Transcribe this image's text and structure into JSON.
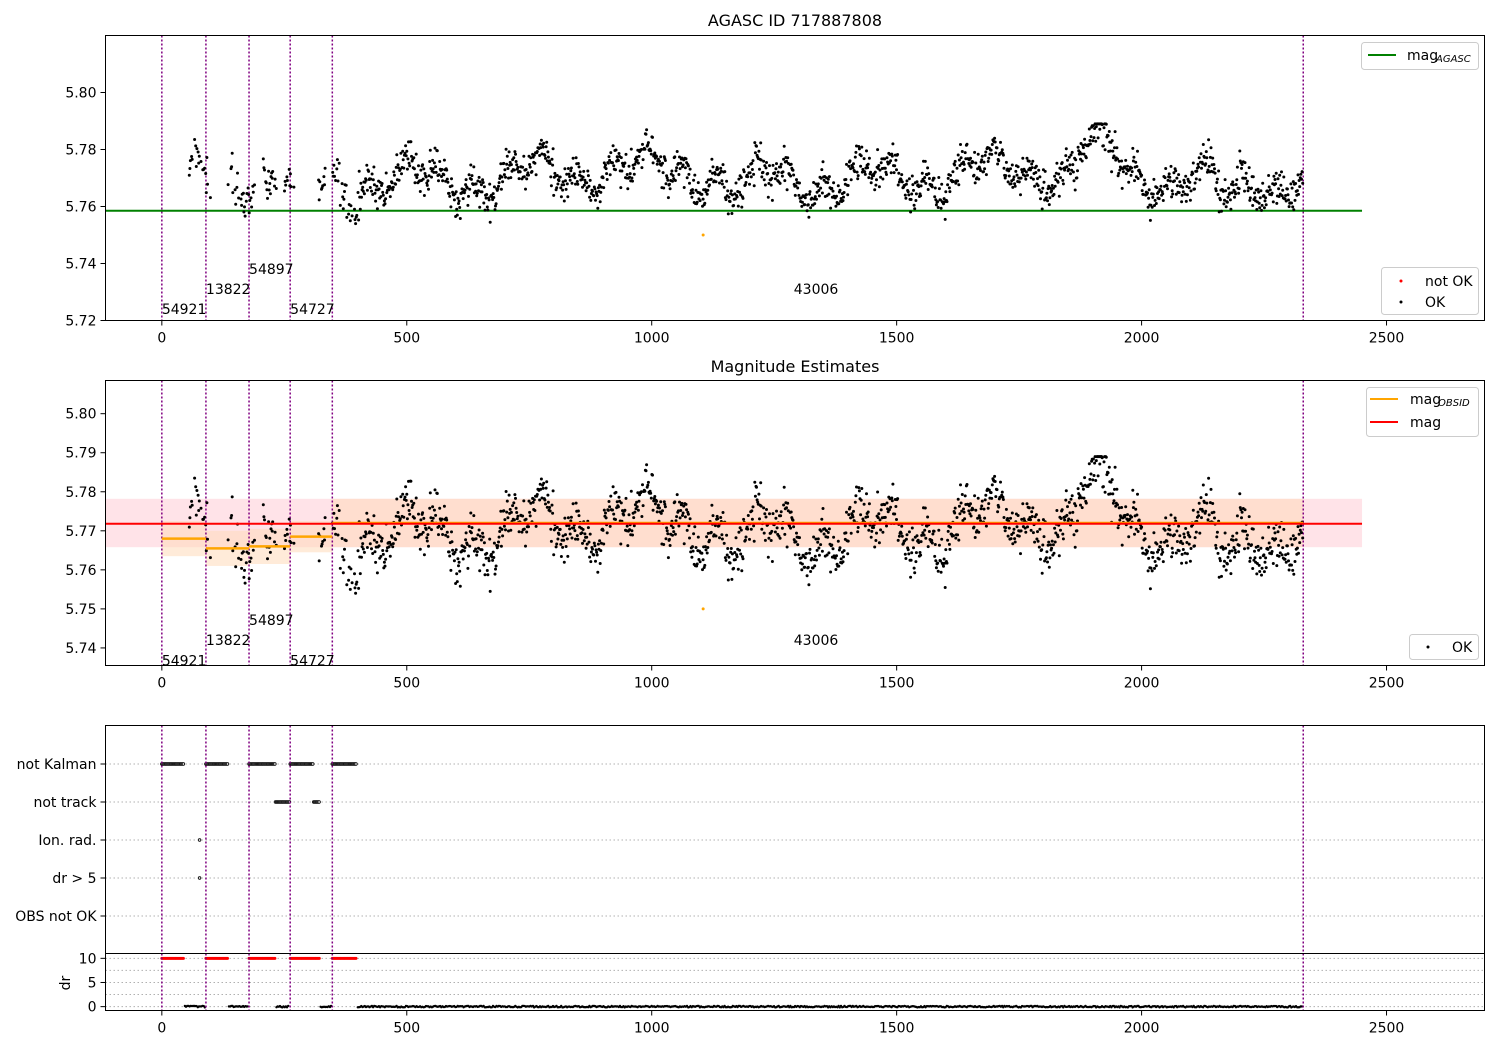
{
  "colors": {
    "ok": "#000000",
    "not_ok": "#ff0000",
    "agasc_line": "#008000",
    "obsid_line": "#ffa500",
    "mag_line": "#ff0000",
    "mag_band": "#ffc0cb",
    "obsid_band": "#ffdab9",
    "vline": "#800080",
    "grid": "#b0b0b0"
  },
  "figure": {
    "x_ticks": [
      0,
      500,
      1000,
      1500,
      2000,
      2500
    ],
    "xlim": [
      -115,
      2700
    ],
    "obs_boundaries": [
      0,
      90,
      178,
      262,
      348,
      2330
    ]
  },
  "chart_data": [
    {
      "type": "scatter",
      "title": "AGASC ID 717887808",
      "xlim": [
        -115,
        2700
      ],
      "ylim": [
        5.72,
        5.82
      ],
      "y_ticks": [
        5.72,
        5.74,
        5.76,
        5.78,
        5.8
      ],
      "y_tick_labels": [
        "5.72",
        "5.74",
        "5.76",
        "5.78",
        "5.80"
      ],
      "mag_agasc": 5.7585,
      "mag_agasc_x_range": [
        -115,
        2450
      ],
      "not_ok_points": [
        [
          1105,
          5.75
        ]
      ],
      "obsid_labels": [
        {
          "text": "54921",
          "x": 0,
          "y": 5.724
        },
        {
          "text": "13822",
          "x": 90,
          "y": 5.731
        },
        {
          "text": "54897",
          "x": 178,
          "y": 5.738
        },
        {
          "text": "54727",
          "x": 262,
          "y": 5.724
        },
        {
          "text": "43006",
          "x": 1290,
          "y": 5.731
        }
      ],
      "legend_upper": {
        "main": "mag",
        "sub": "AGASC"
      },
      "legend_lower": [
        "not OK",
        "OK"
      ],
      "grid": false
    },
    {
      "type": "scatter",
      "title": "Magnitude Estimates",
      "xlim": [
        -115,
        2700
      ],
      "ylim": [
        5.7355,
        5.8085
      ],
      "y_ticks": [
        5.74,
        5.75,
        5.76,
        5.77,
        5.78,
        5.79,
        5.8
      ],
      "y_tick_labels": [
        "5.74",
        "5.75",
        "5.76",
        "5.77",
        "5.78",
        "5.79",
        "5.80"
      ],
      "mag": 5.7718,
      "mag_band": [
        5.7658,
        5.7782
      ],
      "mag_x_range": [
        -115,
        2450
      ],
      "obsid_mags": [
        {
          "x": [
            0,
            90
          ],
          "mag": 5.768,
          "band": [
            5.7635,
            5.7725
          ]
        },
        {
          "x": [
            90,
            178
          ],
          "mag": 5.7655,
          "band": [
            5.761,
            5.77
          ]
        },
        {
          "x": [
            178,
            262
          ],
          "mag": 5.766,
          "band": [
            5.7615,
            5.7705
          ]
        },
        {
          "x": [
            262,
            348
          ],
          "mag": 5.7685,
          "band": [
            5.7645,
            5.7725
          ]
        },
        {
          "x": [
            348,
            2330
          ],
          "mag": 5.772,
          "band": [
            5.7658,
            5.7782
          ]
        }
      ],
      "not_ok_points": [
        [
          1105,
          5.75
        ]
      ],
      "obsid_labels": [
        {
          "text": "54921",
          "x": 0,
          "y": 5.7368
        },
        {
          "text": "13822",
          "x": 90,
          "y": 5.742
        },
        {
          "text": "54897",
          "x": 178,
          "y": 5.7472
        },
        {
          "text": "54727",
          "x": 262,
          "y": 5.7368
        },
        {
          "text": "43006",
          "x": 1290,
          "y": 5.742
        }
      ],
      "legend_upper": [
        {
          "main": "mag",
          "sub": "OBSID"
        },
        {
          "main": "mag",
          "sub": ""
        }
      ],
      "legend_lower": [
        "OK"
      ],
      "grid": false
    },
    {
      "type": "scatter",
      "title": "",
      "xlim": [
        -115,
        2700
      ],
      "flag_labels": [
        "not Kalman",
        "not track",
        "Ion. rad.",
        "dr > 5",
        "OBS not OK"
      ],
      "flag_segments": {
        "not Kalman": [
          [
            0,
            45
          ],
          [
            90,
            135
          ],
          [
            178,
            232
          ],
          [
            262,
            310
          ],
          [
            348,
            398
          ]
        ],
        "not track": [
          [
            232,
            262
          ],
          [
            310,
            322
          ]
        ],
        "Ion. rad.": [
          [
            77,
            79
          ]
        ],
        "dr > 5": [
          [
            77,
            79
          ]
        ],
        "OBS not OK": []
      },
      "dr_ylabel": "dr",
      "dr_ylim": [
        -0.8,
        11
      ],
      "dr_ticks": [
        0,
        5,
        10
      ],
      "dr_tick_labels": [
        "0",
        "5",
        "10"
      ],
      "dr_capped_segments": [
        [
          0,
          45
        ],
        [
          90,
          135
        ],
        [
          178,
          232
        ],
        [
          262,
          322
        ],
        [
          348,
          398
        ]
      ],
      "dr_low_segments": [
        [
          45,
          90
        ],
        [
          135,
          178
        ],
        [
          232,
          262
        ],
        [
          322,
          348
        ],
        [
          398,
          2330
        ]
      ],
      "grid": true
    }
  ]
}
